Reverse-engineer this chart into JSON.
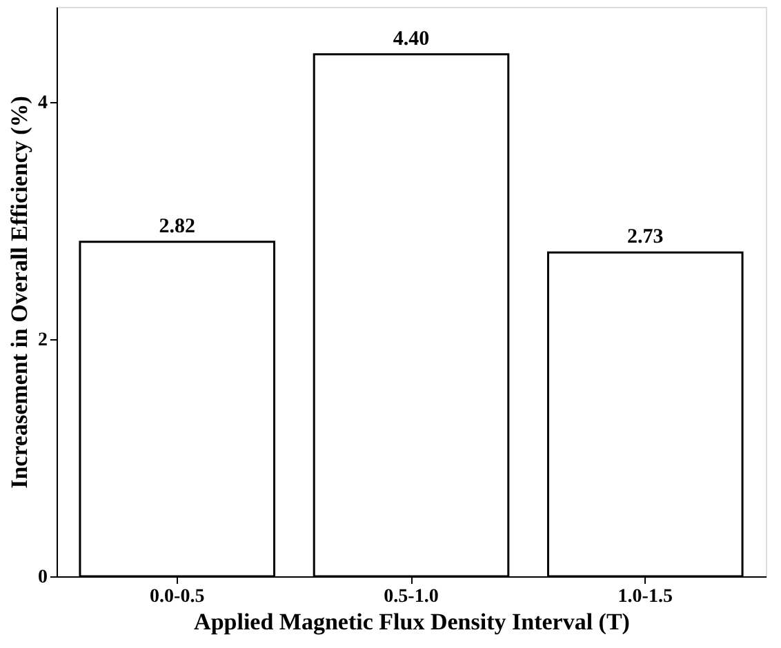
{
  "chart_data": {
    "type": "bar",
    "xlabel": "Applied Magnetic Flux Density Interval (T)",
    "ylabel": "Increasement in Overall Efficiency (%)",
    "categories": [
      "0.0-0.5",
      "0.5-1.0",
      "1.0-1.5"
    ],
    "values": [
      2.82,
      4.4,
      2.73
    ],
    "value_labels": [
      "2.82",
      "4.40",
      "2.73"
    ],
    "color": "#ffffff",
    "ylim": [
      0,
      4.8
    ],
    "yticks": [
      0,
      2,
      4
    ],
    "grid": false
  }
}
